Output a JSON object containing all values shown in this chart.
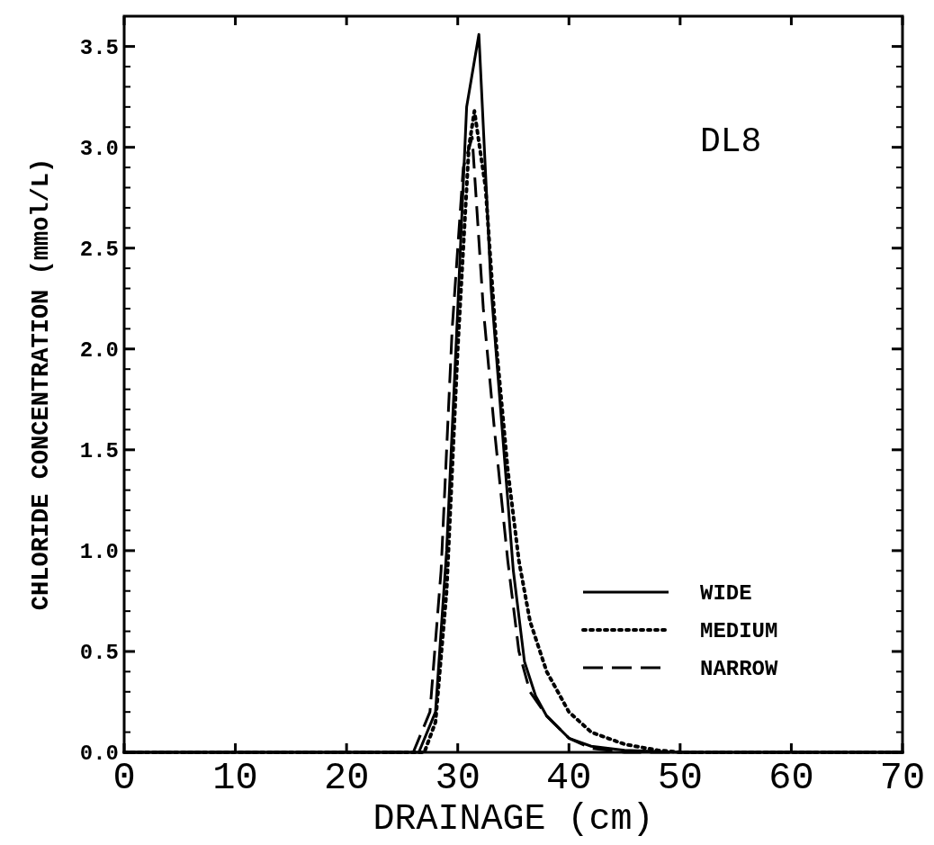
{
  "chart_data": {
    "type": "line",
    "xlabel": "DRAINAGE (cm)",
    "ylabel": "CHLORIDE CONCENTRATION (mmol/L)",
    "annotations": [
      "DL8"
    ],
    "xlim": [
      0,
      70
    ],
    "xticks": [
      0,
      10,
      20,
      30,
      40,
      50,
      60,
      70
    ],
    "ylim": [
      0,
      3.65
    ],
    "yticks": [
      {
        "value": 0,
        "label": "0.0"
      },
      0.5,
      {
        "value": 1,
        "label": "1.0"
      },
      1.5,
      {
        "value": 2,
        "label": "2.0"
      },
      2.5,
      {
        "value": 3,
        "label": "3.0"
      },
      3.5
    ],
    "grid": false,
    "legend": "bottom right",
    "series": [
      {
        "name": "WIDE",
        "color": "#000000",
        "line_style": "solid",
        "x": [
          0,
          26.5,
          28,
          29,
          30,
          30.8,
          31.9,
          33,
          34,
          35,
          36,
          37,
          38,
          40,
          42,
          45,
          50,
          70
        ],
        "values": [
          0,
          0,
          0.2,
          1.0,
          2.2,
          3.2,
          3.56,
          2.3,
          1.6,
          0.9,
          0.45,
          0.28,
          0.18,
          0.07,
          0.03,
          0.01,
          0,
          0
        ]
      },
      {
        "name": "MEDIUM",
        "color": "#000000",
        "line_style": "dotted",
        "x": [
          0,
          27,
          28,
          29,
          30,
          31,
          31.5,
          32.5,
          33.5,
          34.5,
          35.5,
          36.5,
          38,
          40,
          42,
          45,
          48,
          50,
          70
        ],
        "values": [
          0,
          0,
          0.15,
          0.8,
          2.0,
          3.0,
          3.18,
          2.8,
          2.0,
          1.4,
          0.95,
          0.65,
          0.4,
          0.2,
          0.1,
          0.04,
          0.01,
          0,
          0
        ]
      },
      {
        "name": "NARROW",
        "color": "#000000",
        "line_style": "dashed",
        "x": [
          0,
          26,
          27.5,
          28.5,
          29.5,
          30.5,
          31.3,
          32.3,
          33.3,
          34.5,
          35.5,
          36.5,
          38,
          40,
          42,
          45,
          70
        ],
        "values": [
          0,
          0,
          0.2,
          0.9,
          2.1,
          2.9,
          3.05,
          2.2,
          1.6,
          0.95,
          0.5,
          0.3,
          0.18,
          0.07,
          0.02,
          0,
          0
        ]
      }
    ]
  }
}
